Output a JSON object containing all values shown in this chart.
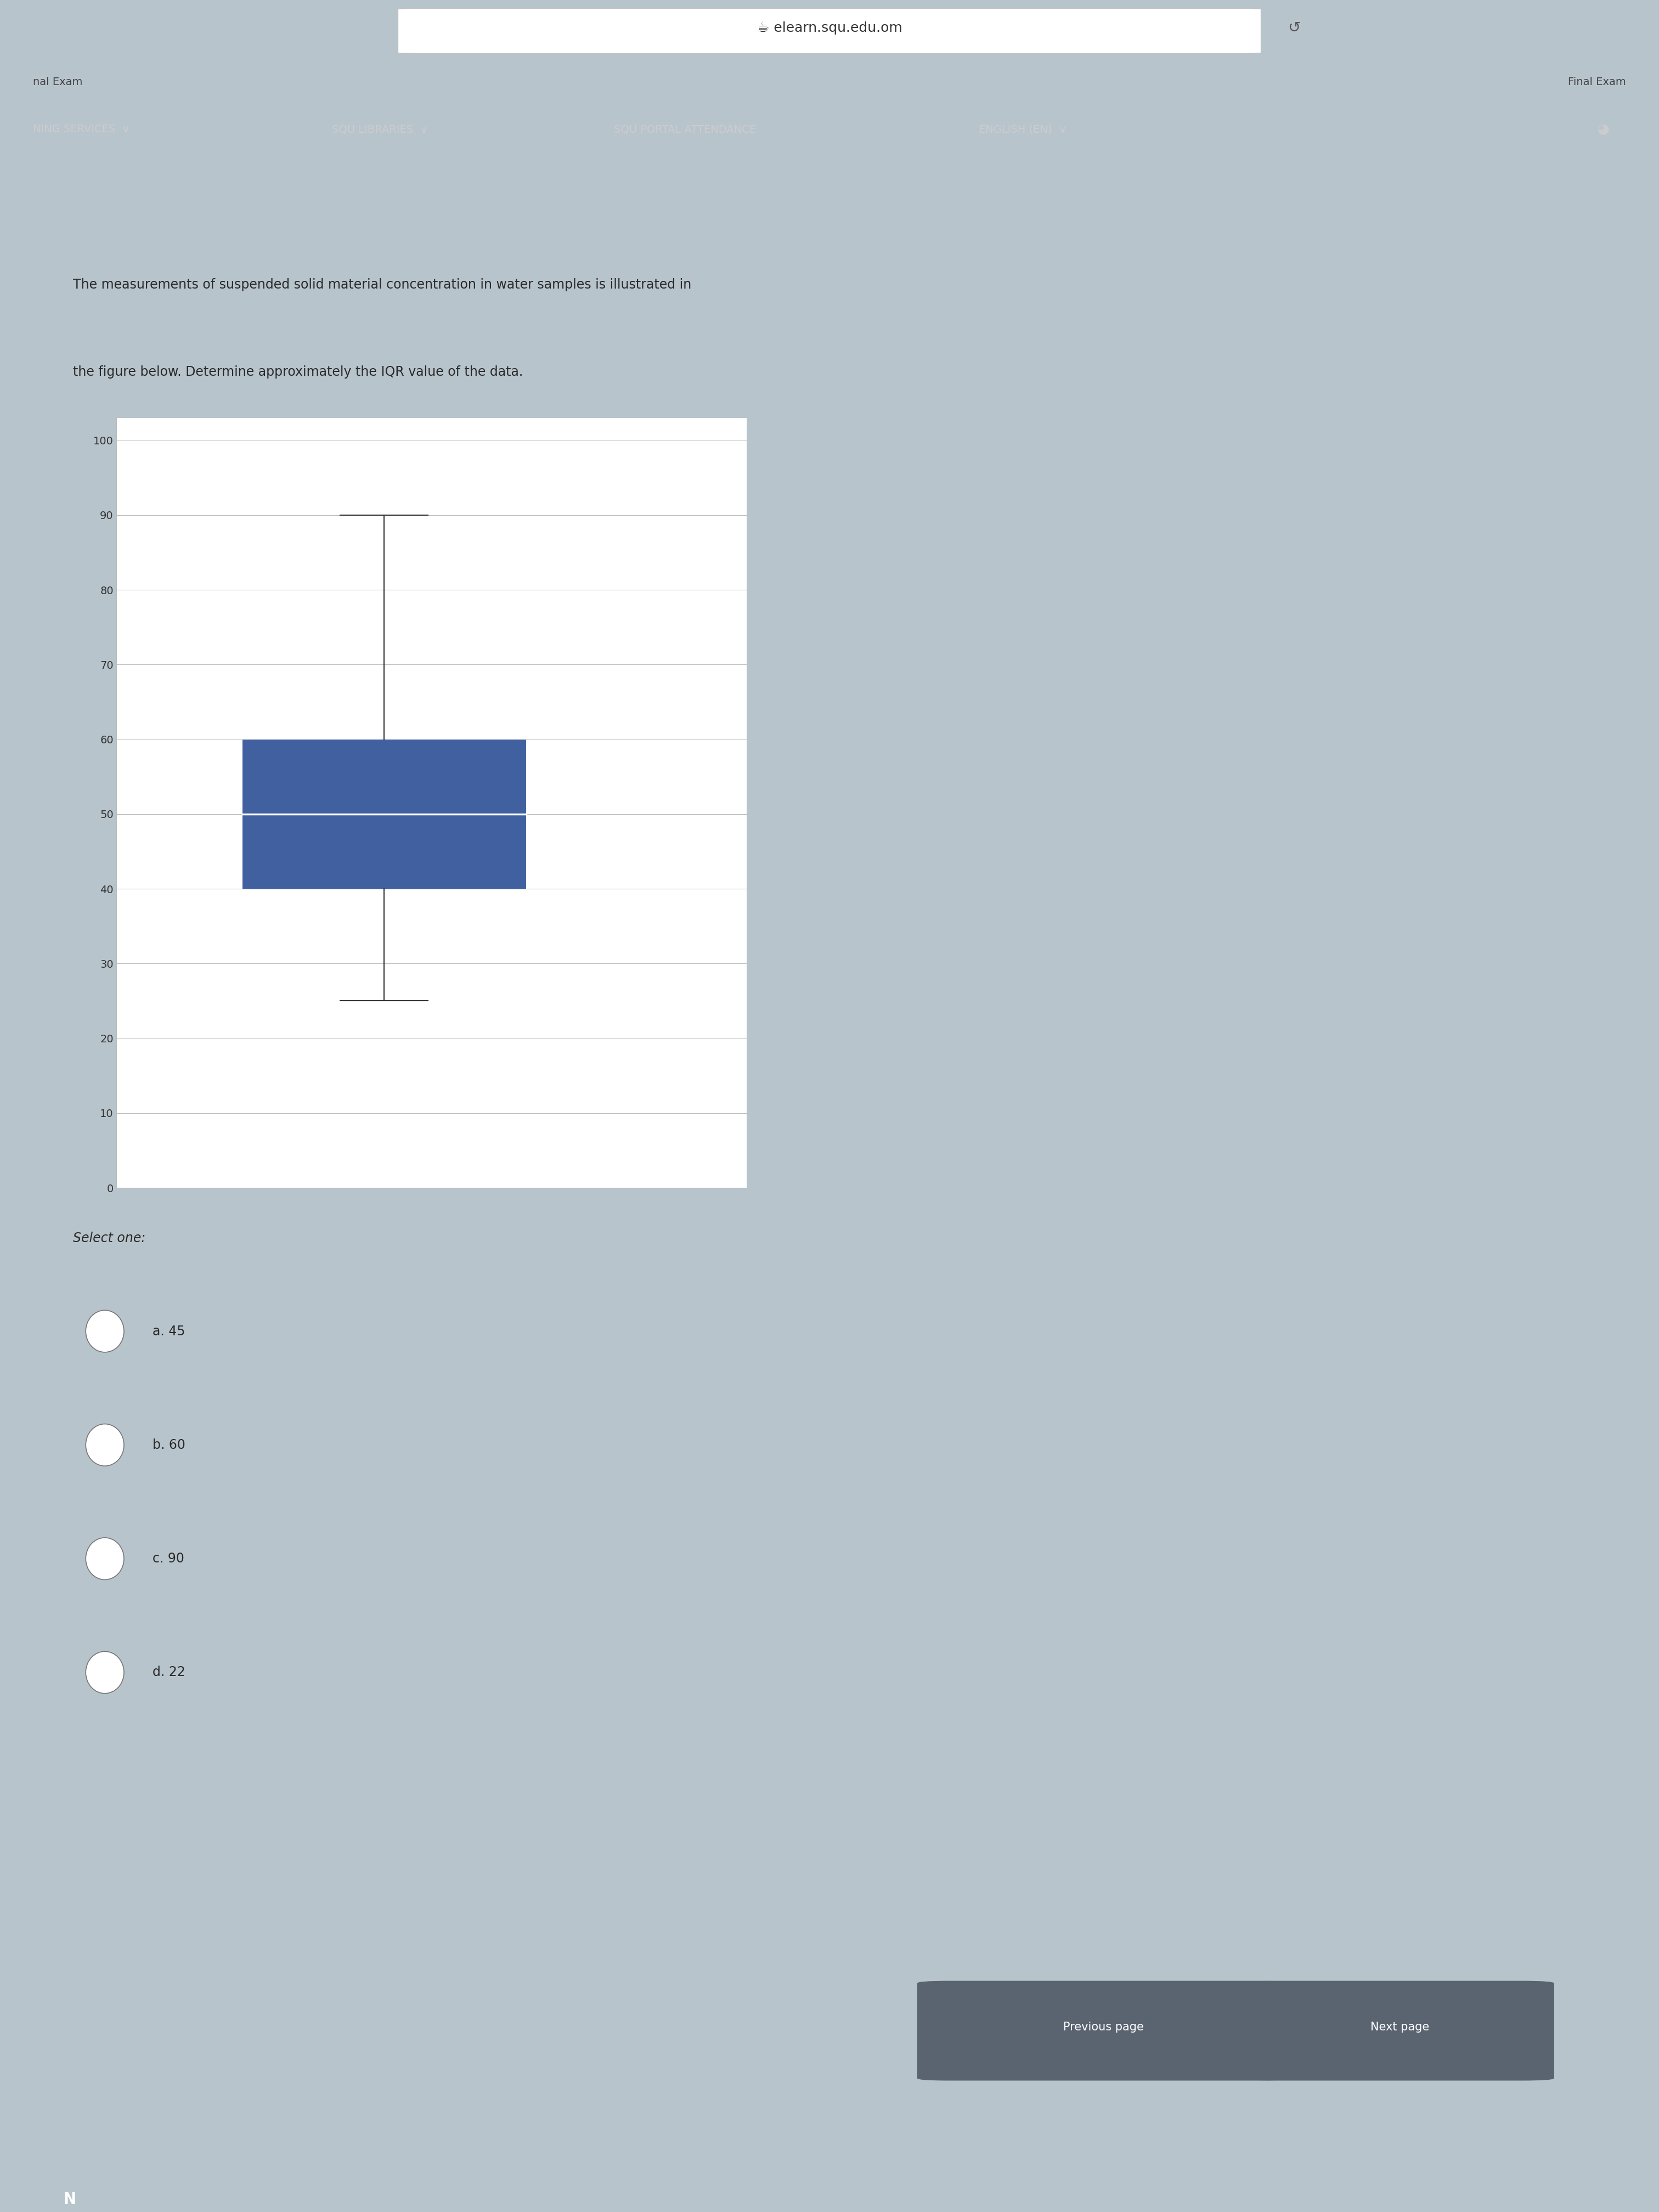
{
  "title_line1": "The measurements of suspended solid material concentration in water samples is illustrated in",
  "title_line2": "the figure below. Determine approximately the IQR value of the data.",
  "boxplot": {
    "whisker_low": 25,
    "q1": 40,
    "median": 50,
    "q3": 60,
    "whisker_high": 90,
    "box_facecolor": "#4060A0",
    "median_color": "#ffffff"
  },
  "yticks": [
    0,
    10,
    20,
    30,
    40,
    50,
    60,
    70,
    80,
    90,
    100
  ],
  "page_bg": "#b8c4cc",
  "card_bg": "#c5cfd6",
  "plot_bg": "#ffffff",
  "question_text_color": "#2a2a2a",
  "select_one_text": "Select one:",
  "options": [
    {
      "label": "a. 45"
    },
    {
      "label": "b. 60"
    },
    {
      "label": "c. 90"
    },
    {
      "label": "d. 22"
    }
  ],
  "prev_btn": "Previous page",
  "next_btn": "Next page",
  "header_bg": "#1e2d5e",
  "top_bar_bg": "#2a2a2a",
  "btn_bg": "#5a6370"
}
